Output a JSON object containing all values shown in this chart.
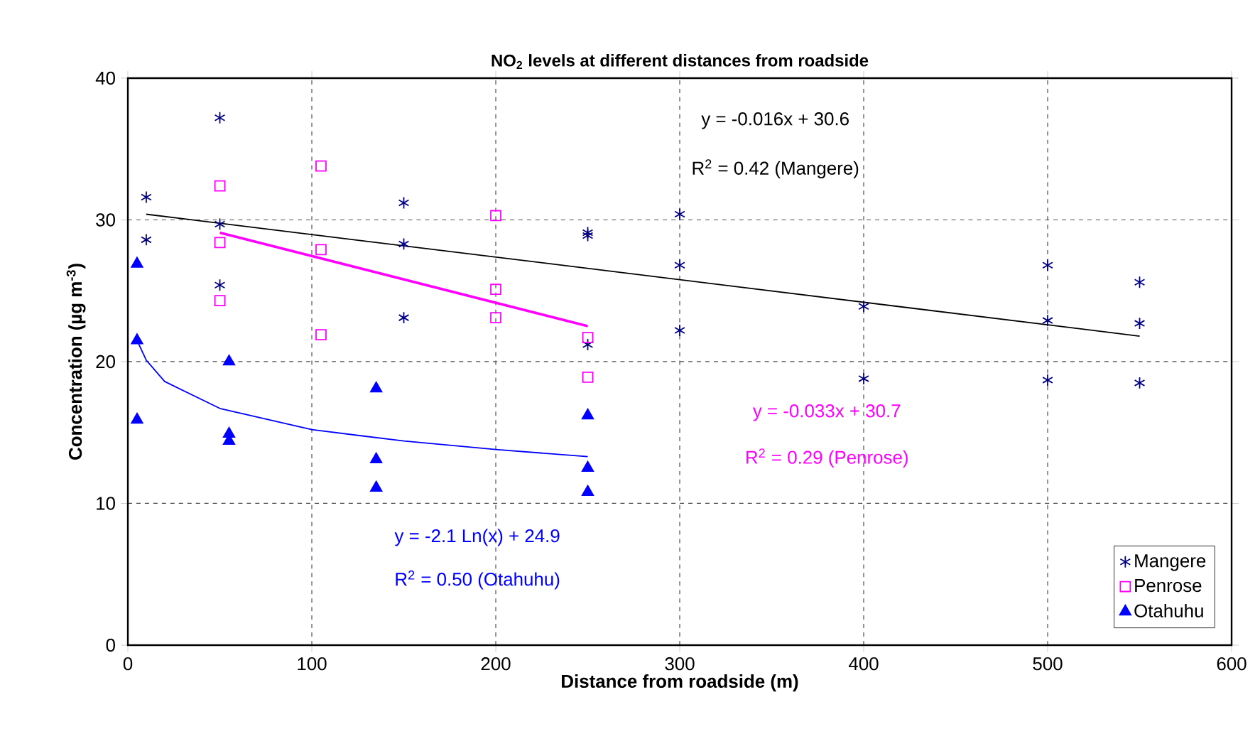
{
  "chart_data": {
    "type": "scatter",
    "title": "NO$_{2}$ levels at different distances from roadside",
    "xlabel": "Distance from roadside (m)",
    "ylabel": "Concentration (µg m$^{-3}$)",
    "xlim": [
      0,
      600
    ],
    "ylim": [
      0,
      40
    ],
    "xticks": [
      0,
      100,
      200,
      300,
      400,
      500,
      600
    ],
    "yticks": [
      0,
      10,
      20,
      30,
      40
    ],
    "grid": true,
    "legend": "bottom right",
    "series": [
      {
        "name": "Mangere",
        "color": "#000080",
        "marker": "cross",
        "x": [
          10,
          10,
          50,
          50,
          50,
          150,
          150,
          150,
          250,
          250,
          250,
          300,
          300,
          300,
          400,
          400,
          500,
          500,
          500,
          550,
          550,
          550
        ],
        "values": [
          31.6,
          28.6,
          37.2,
          29.7,
          25.4,
          31.2,
          28.3,
          23.1,
          29.1,
          28.9,
          21.2,
          30.4,
          26.8,
          22.2,
          23.9,
          18.8,
          26.8,
          22.9,
          18.7,
          25.6,
          22.7,
          18.5
        ]
      },
      {
        "name": "Penrose",
        "color": "#ff00ff",
        "marker": "square",
        "x": [
          50,
          50,
          50,
          105,
          105,
          105,
          200,
          200,
          200,
          250,
          250
        ],
        "values": [
          32.4,
          28.4,
          24.3,
          33.8,
          27.9,
          21.9,
          30.3,
          25.1,
          23.1,
          21.7,
          18.9
        ]
      },
      {
        "name": "Otahuhu",
        "color": "#0000ff",
        "marker": "triangle",
        "x": [
          5,
          5,
          5,
          55,
          55,
          55,
          135,
          135,
          135,
          250,
          250,
          250
        ],
        "values": [
          26.9,
          21.5,
          15.9,
          20.0,
          14.9,
          14.4,
          18.1,
          13.1,
          11.1,
          16.2,
          12.5,
          10.8
        ]
      },
      {
        "type": "line",
        "color": "#000000",
        "x": [
          10,
          550
        ],
        "values": [
          30.4,
          21.8
        ]
      },
      {
        "type": "line",
        "color": "#ff00ff",
        "x": [
          50,
          250
        ],
        "values": [
          29.1,
          22.5
        ]
      },
      {
        "type": "line",
        "color": "#0000ff",
        "x": [
          5,
          10,
          20,
          50,
          100,
          150,
          200,
          250
        ],
        "values": [
          21.5,
          20.1,
          18.6,
          16.7,
          15.2,
          14.4,
          13.8,
          13.3
        ]
      }
    ],
    "annotations": [
      "y = -0.016x + 30.6",
      "R$^{2}$ = 0.42 (Mangere)",
      "y = -0.033x + 30.7",
      "R$^{2}$ = 0.29 (Penrose)",
      "y = -2.1 Ln(x) + 24.9",
      "R$^{2}$ = 0.50 (Otahuhu)"
    ]
  }
}
